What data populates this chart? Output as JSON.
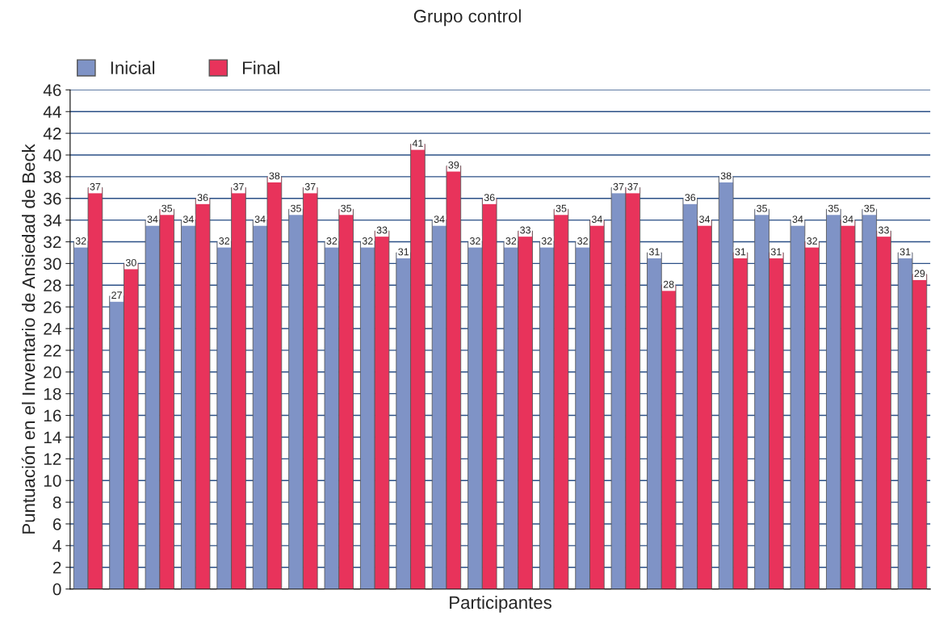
{
  "chart_data": {
    "type": "bar",
    "title": "Grupo control",
    "xlabel": "Participantes",
    "ylabel": "Puntuación en el Inventario de Ansiedad de Beck",
    "categories": [
      null,
      null,
      null,
      null,
      null,
      null,
      null,
      null,
      null,
      null,
      null,
      null,
      null,
      null,
      null,
      null,
      null,
      null,
      null,
      null,
      null,
      null,
      null,
      null
    ],
    "series": [
      {
        "name": "Inicial",
        "color": "#7f93c6",
        "values": [
          32,
          27,
          34,
          34,
          32,
          34,
          35,
          32,
          32,
          31,
          34,
          32,
          32,
          32,
          32,
          37,
          31,
          36,
          38,
          35,
          34,
          35,
          35,
          31
        ]
      },
      {
        "name": "Final",
        "color": "#e8335b",
        "values": [
          37,
          30,
          35,
          36,
          37,
          38,
          37,
          35,
          33,
          41,
          39,
          36,
          33,
          35,
          34,
          37,
          28,
          34,
          31,
          31,
          32,
          34,
          33,
          29
        ]
      }
    ],
    "ylim": [
      0,
      46
    ],
    "yticks": [
      0,
      2,
      4,
      6,
      8,
      10,
      12,
      14,
      16,
      18,
      20,
      22,
      24,
      26,
      28,
      30,
      32,
      34,
      36,
      38,
      40,
      42,
      44,
      46
    ],
    "grid": "y",
    "legend": "top left",
    "data_labels": true,
    "tick_labels": "y"
  }
}
